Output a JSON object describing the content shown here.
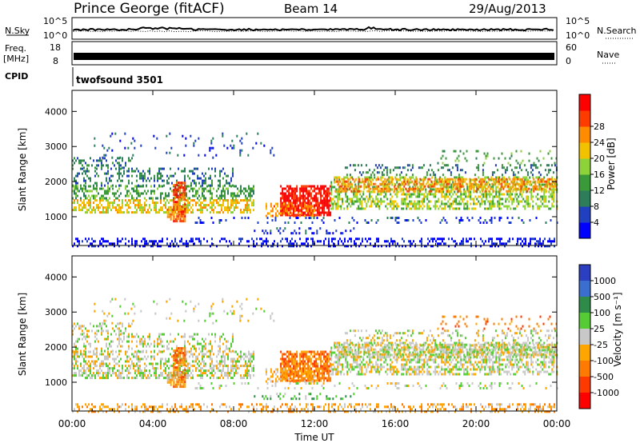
{
  "header": {
    "station": "Prince George (fitACF)",
    "beam": "Beam 14",
    "date": "29/Aug/2013"
  },
  "panels": {
    "nsky": {
      "left_label": "N.Sky",
      "left_tick_top": "10^5",
      "left_tick_bottom": "10^0",
      "right_tick_top": "10^5",
      "right_tick_bottom": "10^0",
      "right_label": "N.Search"
    },
    "freq": {
      "left_label_line1": "Freq.",
      "left_label_line2": "[MHz]",
      "left_tick_top": "18",
      "left_tick_bottom": "8",
      "right_tick_top": "60",
      "right_tick_bottom": "0",
      "right_label": "Nave"
    },
    "cpid": {
      "label": "CPID",
      "program": "twofsound 3501"
    }
  },
  "colors": {
    "power": [
      "#0000ff",
      "#2040c0",
      "#2e7d5a",
      "#3a9a3a",
      "#8ed23a",
      "#f2c200",
      "#ff8c00",
      "#ff3c00",
      "#ff0000"
    ],
    "velocity": [
      "#2c3fc0",
      "#3a6fd0",
      "#2e8b4a",
      "#55cc33",
      "#c8c8c8",
      "#ffa500",
      "#ff7a00",
      "#ff3a00",
      "#ff0000"
    ],
    "series_line": "#000000"
  },
  "chart_data": [
    {
      "type": "heatmap",
      "name_key": "power",
      "ylabel": "Slant Range [km]",
      "ylim": [
        180,
        4600
      ],
      "yticks": [
        "1000",
        "2000",
        "3000",
        "4000"
      ],
      "ytick_values": [
        1000,
        2000,
        3000,
        4000
      ],
      "colorbar_label": "Power [dB]",
      "colorbar_ticks": [
        "4",
        "8",
        "12",
        "16",
        "20",
        "24",
        "28"
      ],
      "colorbar_range": [
        0,
        32
      ],
      "x_range_hours": [
        0,
        24
      ],
      "grid": false
    },
    {
      "type": "heatmap",
      "name_key": "velocity",
      "ylabel": "Slant Range [km]",
      "ylim": [
        180,
        4600
      ],
      "yticks": [
        "1000",
        "2000",
        "3000",
        "4000"
      ],
      "ytick_values": [
        1000,
        2000,
        3000,
        4000
      ],
      "colorbar_label": "Velocity [m s⁻¹]",
      "colorbar_ticks": [
        "1000",
        "500",
        "100",
        "25",
        "-25",
        "-100",
        "-500",
        "-1000"
      ],
      "x_range_hours": [
        0,
        24
      ],
      "grid": false
    }
  ],
  "x_axis": {
    "label": "Time UT",
    "ticks": [
      "00:00",
      "04:00",
      "08:00",
      "12:00",
      "16:00",
      "20:00",
      "00:00"
    ],
    "tick_hours": [
      0,
      4,
      8,
      12,
      16,
      20,
      24
    ]
  }
}
